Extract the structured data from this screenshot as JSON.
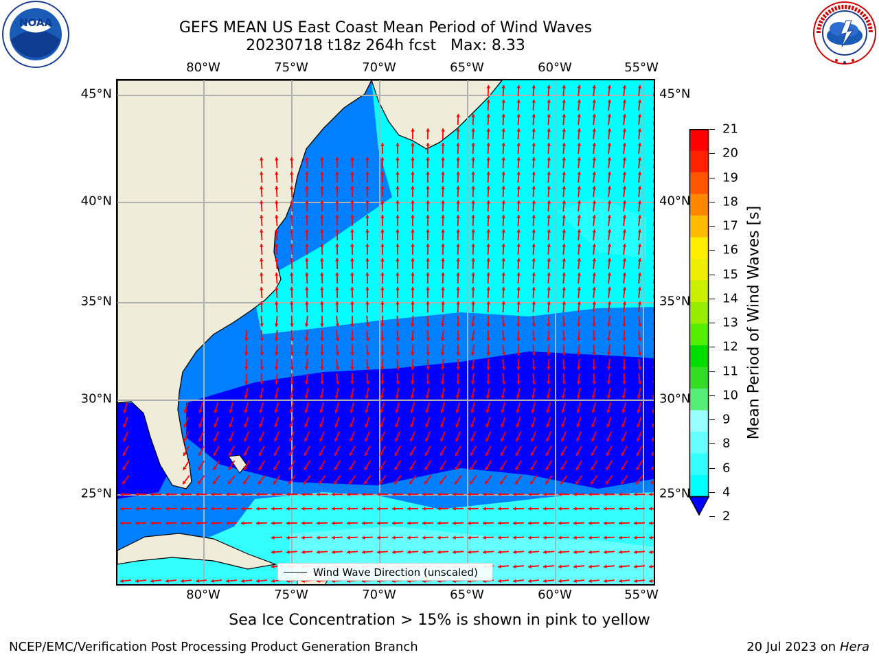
{
  "header": {
    "title_line1": "GEFS MEAN US East Coast Mean Period of Wind Waves",
    "title_line2": "20230718 t18z 264h fcst   Max: 8.33"
  },
  "logos": {
    "noaa": {
      "text": "NOAA",
      "ring_text": "NATIONAL OCEANIC AND ATMOSPHERIC ADMINISTRATION · U.S. DEPARTMENT OF COMMERCE"
    },
    "nws": {
      "ring_text": "NATIONAL WEATHER SERVICE"
    }
  },
  "map": {
    "lon_labels": [
      "80°W",
      "75°W",
      "70°W",
      "65°W",
      "60°W",
      "55°W"
    ],
    "lat_labels": [
      "45°N",
      "40°N",
      "35°N",
      "30°N",
      "25°N"
    ],
    "legend_label": "Wind Wave Direction (unscaled)",
    "arrow_color": "#ff0000",
    "land_color": "#efedda",
    "period_bands": [
      {
        "region": "north of ~35°N",
        "class": "4-6",
        "color": "#00ffff"
      },
      {
        "region": "coastal / 31-35°N",
        "class": "2-4",
        "color": "#0080ff"
      },
      {
        "region": "26-31°N",
        "class": "<2",
        "color": "#0000ff"
      },
      {
        "region": "south of 25°N",
        "class": "4-8",
        "color": "#33ffff"
      }
    ]
  },
  "colorbar": {
    "label": "Mean Period of Wind Waves [s]",
    "ticks": [
      "2",
      "4",
      "6",
      "8",
      "9",
      "10",
      "11",
      "12",
      "13",
      "14",
      "15",
      "16",
      "17",
      "18",
      "19",
      "20",
      "21"
    ],
    "colors": [
      "#0080ff",
      "#00ffff",
      "#33ffff",
      "#66ffff",
      "#99ffff",
      "#55ee77",
      "#33dd22",
      "#00dd00",
      "#55ee00",
      "#99ee00",
      "#ccee00",
      "#eeee00",
      "#ffee00",
      "#ffbb00",
      "#ff8800",
      "#ff5500",
      "#ff2200",
      "#ff0000"
    ],
    "extend_color": "#0000ff"
  },
  "notes": {
    "sea_ice": "Sea Ice Concentration > 15% is shown in pink to yellow"
  },
  "footer": {
    "left": "NCEP/EMC/Verification Post Processing Product Generation Branch",
    "date": "20 Jul 2023 on ",
    "host": "Hera"
  }
}
